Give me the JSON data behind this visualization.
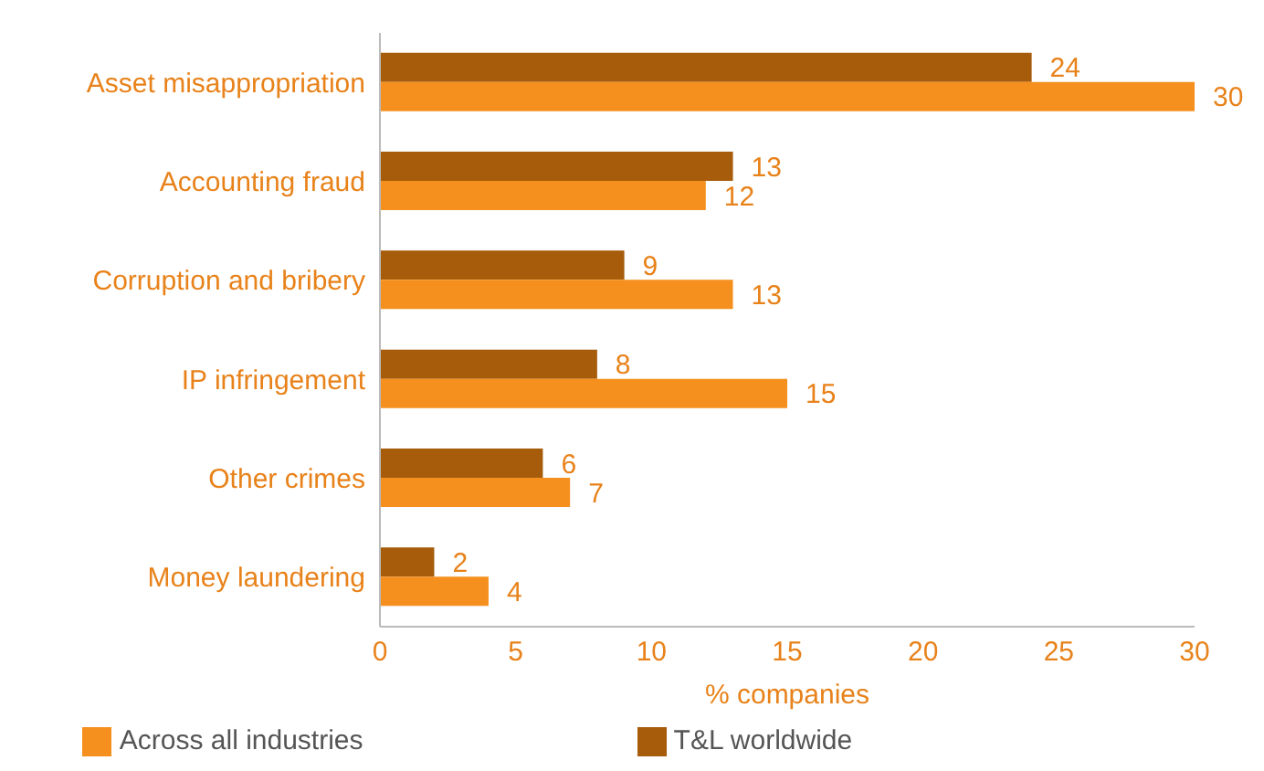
{
  "chart_data": {
    "type": "bar",
    "orientation": "horizontal",
    "categories": [
      "Asset misappropriation",
      "Accounting fraud",
      "Corruption and bribery",
      "IP infringement",
      "Other crimes",
      "Money laundering"
    ],
    "series": [
      {
        "name": "T&L worldwide",
        "color": "#a65c0a",
        "values": [
          24,
          13,
          9,
          8,
          6,
          2
        ]
      },
      {
        "name": "Across all industries",
        "color": "#f5901e",
        "values": [
          30,
          12,
          13,
          15,
          7,
          4
        ]
      }
    ],
    "xlabel": "% companies",
    "xlim": [
      0,
      30
    ],
    "xticks": [
      0,
      5,
      10,
      15,
      20,
      25,
      30
    ],
    "legend": "bottom",
    "data_labels": true
  }
}
